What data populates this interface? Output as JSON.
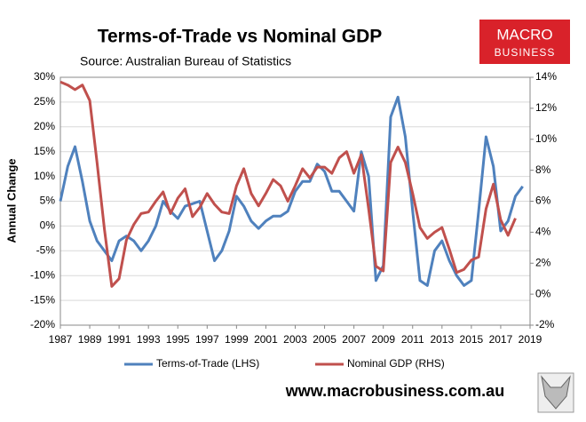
{
  "chart_data": {
    "type": "line",
    "title": "Terms-of-Trade vs Nominal GDP",
    "subtitle": "Source: Australian Bureau of Statistics",
    "y_label": "Annual Change",
    "x": [
      1987,
      1987.5,
      1988,
      1988.5,
      1989,
      1989.5,
      1990,
      1990.5,
      1991,
      1991.5,
      1992,
      1992.5,
      1993,
      1993.5,
      1994,
      1994.5,
      1995,
      1995.5,
      1996,
      1996.5,
      1997,
      1997.5,
      1998,
      1998.5,
      1999,
      1999.5,
      2000,
      2000.5,
      2001,
      2001.5,
      2002,
      2002.5,
      2003,
      2003.5,
      2004,
      2004.5,
      2005,
      2005.5,
      2006,
      2006.5,
      2007,
      2007.5,
      2008,
      2008.5,
      2009,
      2009.5,
      2010,
      2010.5,
      2011,
      2011.5,
      2012,
      2012.5,
      2013,
      2013.5,
      2014,
      2014.5,
      2015,
      2015.5,
      2016,
      2016.5,
      2017,
      2017.5,
      2018,
      2018.5
    ],
    "series": [
      {
        "name": "Terms-of-Trade (LHS)",
        "color": "#4f81bd",
        "values": [
          5,
          12,
          16,
          9,
          1,
          -3,
          -5,
          -7,
          -3,
          -2,
          -3,
          -5,
          -3,
          0,
          5,
          3,
          1.5,
          4,
          4.5,
          5,
          -1,
          -7,
          -5,
          -1,
          6,
          4,
          1,
          -0.5,
          1,
          2,
          2,
          3,
          7,
          9,
          9,
          12.5,
          11,
          7,
          7,
          5,
          3,
          15,
          10,
          -11,
          -8,
          22,
          26,
          18,
          3,
          -11,
          -12,
          -5,
          -3,
          -7,
          -10,
          -12,
          -11,
          3,
          18,
          12,
          -1,
          1,
          6,
          8
        ]
      },
      {
        "name": "Nominal GDP (RHS)",
        "color": "#c0504d",
        "axis": "y2",
        "values": [
          13.7,
          13.5,
          13.2,
          13.5,
          12.5,
          8.5,
          4.2,
          0.5,
          1.0,
          3.5,
          4.5,
          5.2,
          5.3,
          6.0,
          6.6,
          5.2,
          6.2,
          6.8,
          5.0,
          5.6,
          6.5,
          5.8,
          5.3,
          5.2,
          7.0,
          8.1,
          6.5,
          5.7,
          6.5,
          7.4,
          7.0,
          6.0,
          7.0,
          8.1,
          7.5,
          8.2,
          8.2,
          7.8,
          8.8,
          9.2,
          7.8,
          9.0,
          5.5,
          1.8,
          1.5,
          8.5,
          9.5,
          8.5,
          6.5,
          4.3,
          3.6,
          4.0,
          4.3,
          2.9,
          1.4,
          1.6,
          2.2,
          2.4,
          5.5,
          7.1,
          4.8,
          3.8,
          4.9,
          null
        ]
      }
    ],
    "xlim": [
      1987,
      2019
    ],
    "xticks": [
      1987,
      1989,
      1991,
      1993,
      1995,
      1997,
      1999,
      2001,
      2003,
      2005,
      2007,
      2009,
      2011,
      2013,
      2015,
      2017,
      2019
    ],
    "ylim": [
      -20,
      30
    ],
    "yticks": [
      {
        "value": -20,
        "label": "-20%"
      },
      {
        "value": -15,
        "label": "-15%"
      },
      {
        "value": -10,
        "label": "-10%"
      },
      {
        "value": -5,
        "label": "-5%"
      },
      {
        "value": 0,
        "label": "0%"
      },
      {
        "value": 5,
        "label": "5%"
      },
      {
        "value": 10,
        "label": "10%"
      },
      {
        "value": 15,
        "label": "15%"
      },
      {
        "value": 20,
        "label": "20%"
      },
      {
        "value": 25,
        "label": "25%"
      },
      {
        "value": 30,
        "label": "30%"
      }
    ],
    "y2lim": [
      -2,
      14
    ],
    "y2ticks": [
      {
        "value": -2,
        "label": "-2%"
      },
      {
        "value": 0,
        "label": "0%"
      },
      {
        "value": 2,
        "label": "2%"
      },
      {
        "value": 4,
        "label": "4%"
      },
      {
        "value": 6,
        "label": "6%"
      },
      {
        "value": 8,
        "label": "8%"
      },
      {
        "value": 10,
        "label": "10%"
      },
      {
        "value": 12,
        "label": "12%"
      },
      {
        "value": 14,
        "label": "14%"
      }
    ],
    "grid": true,
    "legend": "bottom"
  },
  "logo": {
    "line1": "MACRO",
    "line2": "BUSINESS"
  },
  "website": "www.macrobusiness.com.au"
}
